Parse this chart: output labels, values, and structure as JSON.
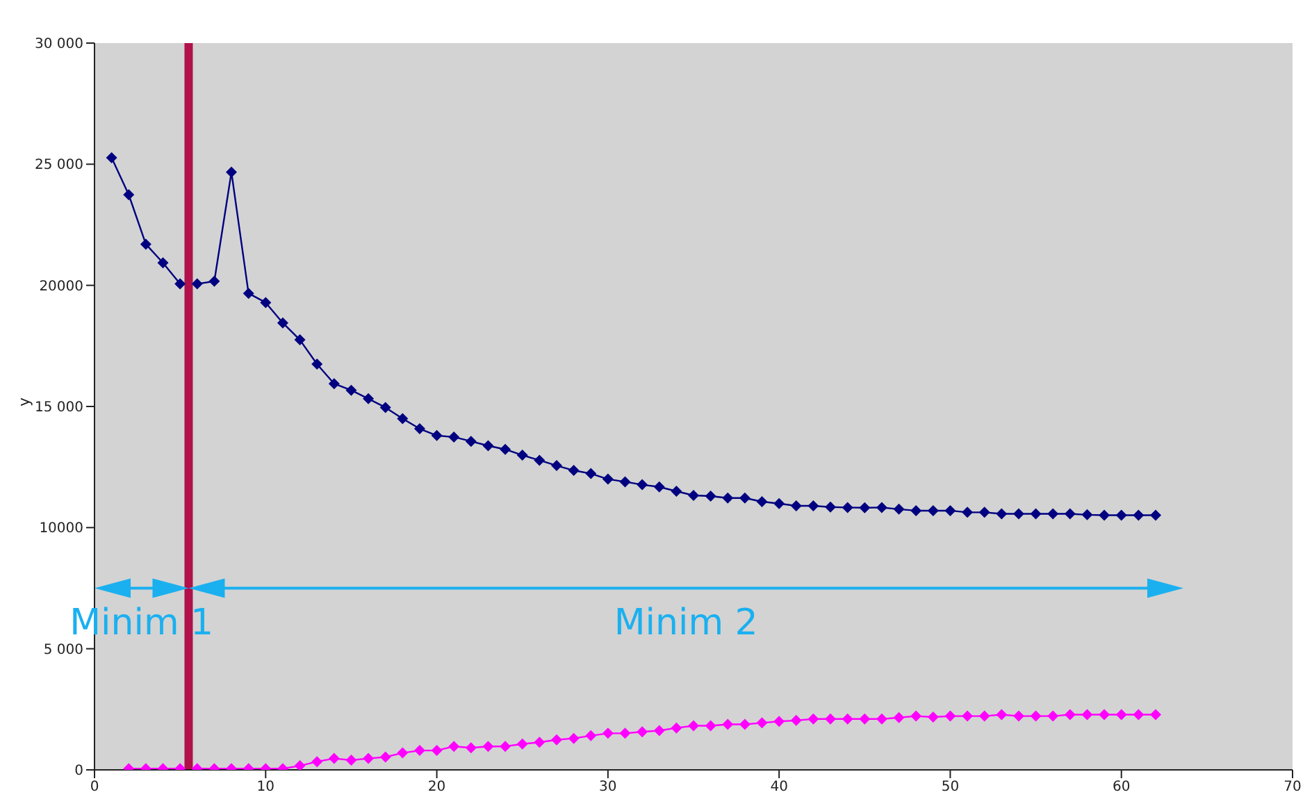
{
  "chart_data": {
    "type": "line",
    "ylabel": "y",
    "xlim": [
      0,
      70
    ],
    "xticks": [
      0,
      10,
      20,
      30,
      40,
      50,
      60,
      70
    ],
    "ylim": [
      0,
      30000
    ],
    "yticks": [
      {
        "value": 0,
        "label": "0"
      },
      {
        "value": 5000,
        "label": "5 000"
      },
      {
        "value": 10000,
        "label": "10000"
      },
      {
        "value": 15000,
        "label": "15 000"
      },
      {
        "value": 20000,
        "label": "20000"
      },
      {
        "value": 25000,
        "label": "25 000"
      },
      {
        "value": 30000,
        "label": "30 000"
      }
    ],
    "grid": false,
    "legend": false,
    "marker": "diamond",
    "line_style": "solid",
    "series": [
      {
        "color": "#000080",
        "x": [
          1,
          2,
          3,
          4,
          5,
          6,
          7,
          8,
          9,
          10,
          11,
          12,
          13,
          14,
          15,
          16,
          17,
          18,
          19,
          20,
          21,
          22,
          23,
          24,
          25,
          26,
          27,
          28,
          29,
          30,
          31,
          32,
          33,
          34,
          35,
          36,
          37,
          38,
          39,
          40,
          41,
          42,
          43,
          44,
          45,
          46,
          47,
          48,
          49,
          50,
          51,
          52,
          53,
          54,
          55,
          56,
          57,
          58,
          59,
          60,
          61,
          62
        ],
        "values": [
          25270,
          23740,
          21700,
          20930,
          20060,
          20060,
          20170,
          24670,
          19670,
          19290,
          18450,
          17750,
          16750,
          15940,
          15670,
          15320,
          14960,
          14500,
          14080,
          13800,
          13740,
          13560,
          13380,
          13230,
          12990,
          12780,
          12560,
          12360,
          12230,
          12000,
          11890,
          11770,
          11680,
          11500,
          11330,
          11300,
          11220,
          11220,
          11070,
          10990,
          10900,
          10900,
          10850,
          10830,
          10820,
          10830,
          10760,
          10700,
          10700,
          10700,
          10630,
          10630,
          10570,
          10570,
          10570,
          10570,
          10570,
          10530,
          10510,
          10510,
          10510,
          10510
        ]
      },
      {
        "color": "#ff00ff",
        "x": [
          2,
          3,
          4,
          5,
          6,
          7,
          8,
          9,
          10,
          11,
          12,
          13,
          14,
          15,
          16,
          17,
          18,
          19,
          20,
          21,
          22,
          23,
          24,
          25,
          26,
          27,
          28,
          29,
          30,
          31,
          32,
          33,
          34,
          35,
          36,
          37,
          38,
          39,
          40,
          41,
          42,
          43,
          44,
          45,
          46,
          47,
          48,
          49,
          50,
          51,
          52,
          53,
          54,
          55,
          56,
          57,
          58,
          59,
          60,
          61,
          62
        ],
        "values": [
          50,
          50,
          50,
          50,
          50,
          50,
          50,
          50,
          50,
          50,
          170,
          340,
          470,
          400,
          470,
          530,
          700,
          800,
          800,
          970,
          910,
          970,
          970,
          1070,
          1140,
          1240,
          1300,
          1410,
          1510,
          1510,
          1570,
          1620,
          1730,
          1820,
          1820,
          1880,
          1880,
          1940,
          2000,
          2040,
          2100,
          2100,
          2100,
          2100,
          2100,
          2160,
          2220,
          2180,
          2220,
          2220,
          2220,
          2280,
          2220,
          2220,
          2220,
          2280,
          2280,
          2280,
          2280,
          2280,
          2280
        ]
      }
    ],
    "ref_lines": [
      {
        "axis": "x",
        "value": 5.5,
        "color": "#b0114a"
      }
    ],
    "annotations": [
      "Minim 1",
      "Minim 2"
    ]
  }
}
